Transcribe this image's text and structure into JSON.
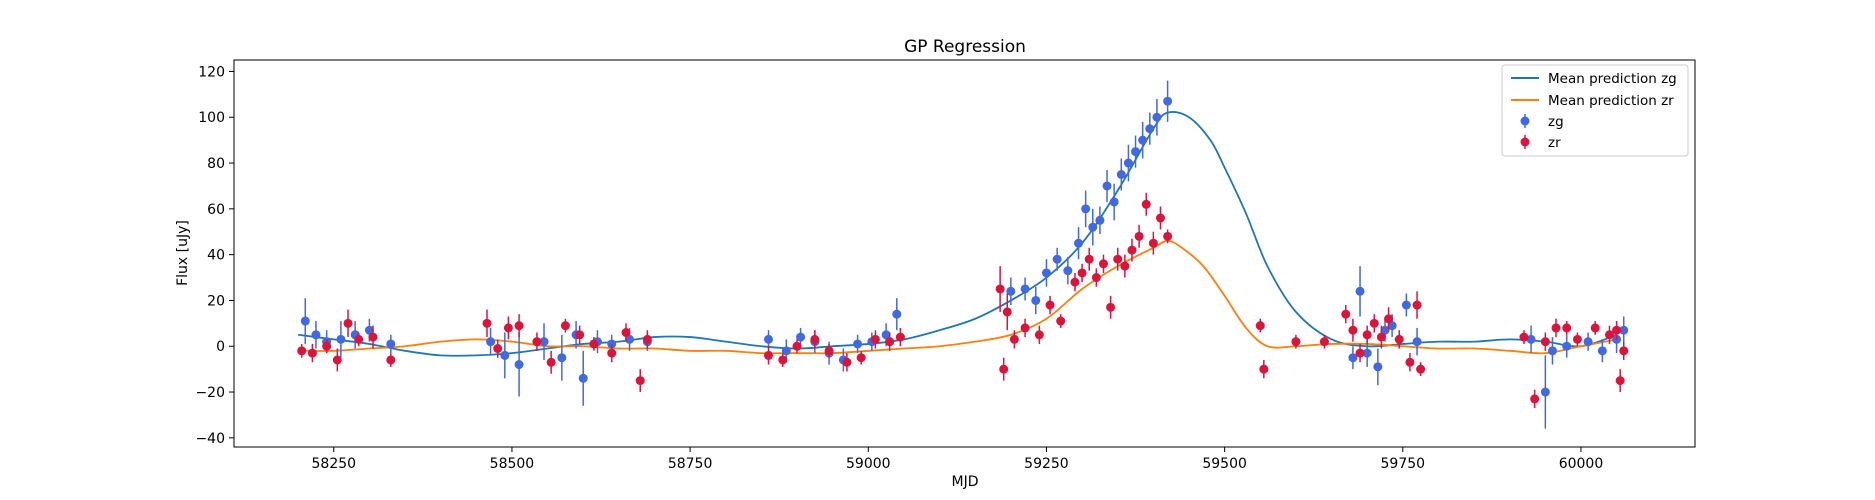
{
  "chart_data": {
    "type": "scatter",
    "title": "GP Regression",
    "xlabel": "MJD",
    "ylabel": "Flux [uJy]",
    "xlim": [
      58110,
      60160
    ],
    "ylim": [
      -44,
      125
    ],
    "xticks": [
      58250,
      58500,
      58750,
      59000,
      59250,
      59500,
      59750,
      60000
    ],
    "yticks": [
      -40,
      -20,
      0,
      20,
      40,
      60,
      80,
      100,
      120
    ],
    "grid": false,
    "legend_position": "top-right",
    "colors": {
      "zg_line": "#1f77b4",
      "zr_line": "#ff7f0e",
      "zg_points": "#4169e1",
      "zr_points": "#dc143c"
    },
    "series": [
      {
        "name": "Mean prediction zg",
        "kind": "line",
        "color": "#1f77b4",
        "x": [
          58200,
          58250,
          58300,
          58350,
          58400,
          58450,
          58500,
          58550,
          58600,
          58650,
          58700,
          58750,
          58800,
          58850,
          58900,
          58950,
          59000,
          59050,
          59100,
          59150,
          59200,
          59250,
          59300,
          59350,
          59400,
          59420,
          59450,
          59480,
          59500,
          59530,
          59560,
          59600,
          59650,
          59700,
          59750,
          59800,
          59850,
          59900,
          59950,
          60000,
          60050
        ],
        "y": [
          5,
          3,
          1,
          -2,
          -4,
          -4,
          -3,
          -1,
          1,
          2,
          4,
          4,
          2,
          0,
          -1,
          0,
          1,
          3,
          7,
          12,
          20,
          30,
          45,
          68,
          95,
          102,
          100,
          90,
          78,
          58,
          35,
          15,
          3,
          0,
          1,
          2,
          2,
          3,
          2,
          0,
          5
        ]
      },
      {
        "name": "Mean prediction zr",
        "kind": "line",
        "color": "#ff7f0e",
        "x": [
          58200,
          58250,
          58300,
          58350,
          58400,
          58450,
          58500,
          58550,
          58600,
          58650,
          58700,
          58750,
          58800,
          58850,
          58900,
          58950,
          59000,
          59050,
          59100,
          59150,
          59200,
          59250,
          59300,
          59350,
          59400,
          59420,
          59440,
          59470,
          59500,
          59530,
          59560,
          59600,
          59650,
          59700,
          59750,
          59800,
          59850,
          59900,
          59950,
          60000,
          60050
        ],
        "y": [
          -2,
          -2,
          -1,
          0,
          2,
          3,
          2,
          0,
          0,
          -1,
          -1,
          -2,
          -2,
          -3,
          -3,
          -3,
          -2,
          -1,
          0,
          2,
          5,
          12,
          25,
          35,
          43,
          46,
          43,
          35,
          22,
          8,
          0,
          0,
          1,
          1,
          0,
          -1,
          -1,
          -2,
          -3,
          0,
          3
        ]
      },
      {
        "name": "zg",
        "kind": "errorbar",
        "color": "#4169e1",
        "x": [
          58210,
          58225,
          58240,
          58260,
          58280,
          58300,
          58330,
          58470,
          58490,
          58510,
          58545,
          58570,
          58590,
          58600,
          58620,
          58640,
          58665,
          58690,
          58860,
          58885,
          58905,
          58925,
          58945,
          58965,
          58985,
          59005,
          59025,
          59040,
          59200,
          59220,
          59235,
          59250,
          59265,
          59280,
          59295,
          59305,
          59315,
          59325,
          59335,
          59345,
          59355,
          59365,
          59375,
          59385,
          59395,
          59405,
          59420,
          59680,
          59690,
          59700,
          59715,
          59725,
          59735,
          59755,
          59770,
          59930,
          59950,
          59960,
          59980,
          60010,
          60030,
          60050,
          60060
        ],
        "y": [
          11,
          5,
          2,
          3,
          5,
          7,
          1,
          2,
          -4,
          -8,
          2,
          -5,
          5,
          -14,
          2,
          1,
          3,
          2,
          3,
          -2,
          4,
          2,
          -3,
          -6,
          1,
          2,
          5,
          14,
          24,
          25,
          20,
          32,
          38,
          33,
          45,
          60,
          52,
          55,
          70,
          63,
          75,
          80,
          85,
          90,
          95,
          100,
          107,
          -5,
          24,
          -3,
          -9,
          7,
          9,
          18,
          2,
          3,
          -20,
          -2,
          0,
          2,
          -2,
          3,
          7
        ],
        "err": [
          10,
          6,
          5,
          8,
          6,
          5,
          4,
          6,
          10,
          14,
          8,
          10,
          6,
          12,
          5,
          4,
          5,
          4,
          4,
          5,
          4,
          5,
          5,
          5,
          4,
          4,
          5,
          7,
          6,
          5,
          6,
          6,
          5,
          6,
          7,
          8,
          8,
          6,
          7,
          8,
          7,
          8,
          7,
          8,
          7,
          8,
          9,
          5,
          11,
          6,
          8,
          5,
          5,
          5,
          6,
          6,
          16,
          6,
          5,
          4,
          5,
          6,
          6
        ]
      },
      {
        "name": "zr",
        "kind": "errorbar",
        "color": "#dc143c",
        "x": [
          58205,
          58220,
          58240,
          58255,
          58270,
          58285,
          58305,
          58330,
          58465,
          58480,
          58495,
          58510,
          58535,
          58555,
          58575,
          58595,
          58615,
          58640,
          58660,
          58680,
          58690,
          58860,
          58880,
          58900,
          58925,
          58945,
          58970,
          58990,
          59010,
          59030,
          59045,
          59185,
          59190,
          59195,
          59205,
          59220,
          59240,
          59255,
          59270,
          59290,
          59300,
          59310,
          59320,
          59330,
          59340,
          59350,
          59360,
          59370,
          59380,
          59390,
          59400,
          59410,
          59420,
          59550,
          59555,
          59600,
          59640,
          59670,
          59680,
          59690,
          59700,
          59710,
          59720,
          59730,
          59745,
          59760,
          59770,
          59775,
          59920,
          59935,
          59950,
          59965,
          59980,
          59995,
          60020,
          60040,
          60050,
          60055,
          60060
        ],
        "y": [
          -2,
          -3,
          0,
          -6,
          10,
          3,
          4,
          -6,
          10,
          -1,
          8,
          9,
          2,
          -7,
          9,
          5,
          1,
          -3,
          6,
          -15,
          3,
          -4,
          -6,
          0,
          3,
          -2,
          -7,
          -5,
          3,
          2,
          4,
          25,
          -10,
          15,
          3,
          8,
          5,
          18,
          11,
          28,
          32,
          38,
          30,
          36,
          17,
          38,
          35,
          42,
          48,
          62,
          45,
          56,
          48,
          9,
          -10,
          2,
          2,
          14,
          7,
          -3,
          5,
          10,
          4,
          12,
          3,
          -7,
          18,
          -10,
          4,
          -23,
          2,
          8,
          8,
          3,
          8,
          5,
          7,
          -15,
          -2
        ],
        "err": [
          3,
          4,
          3,
          5,
          6,
          3,
          5,
          3,
          6,
          4,
          5,
          5,
          4,
          5,
          3,
          4,
          3,
          4,
          4,
          5,
          4,
          4,
          3,
          3,
          4,
          3,
          4,
          3,
          4,
          4,
          4,
          10,
          5,
          8,
          4,
          4,
          4,
          4,
          3,
          4,
          4,
          5,
          4,
          4,
          5,
          5,
          5,
          5,
          5,
          5,
          5,
          5,
          3,
          3,
          4,
          3,
          3,
          4,
          5,
          4,
          4,
          4,
          5,
          5,
          4,
          4,
          6,
          3,
          3,
          4,
          4,
          4,
          3,
          3,
          3,
          4,
          4,
          5,
          4
        ]
      }
    ]
  }
}
